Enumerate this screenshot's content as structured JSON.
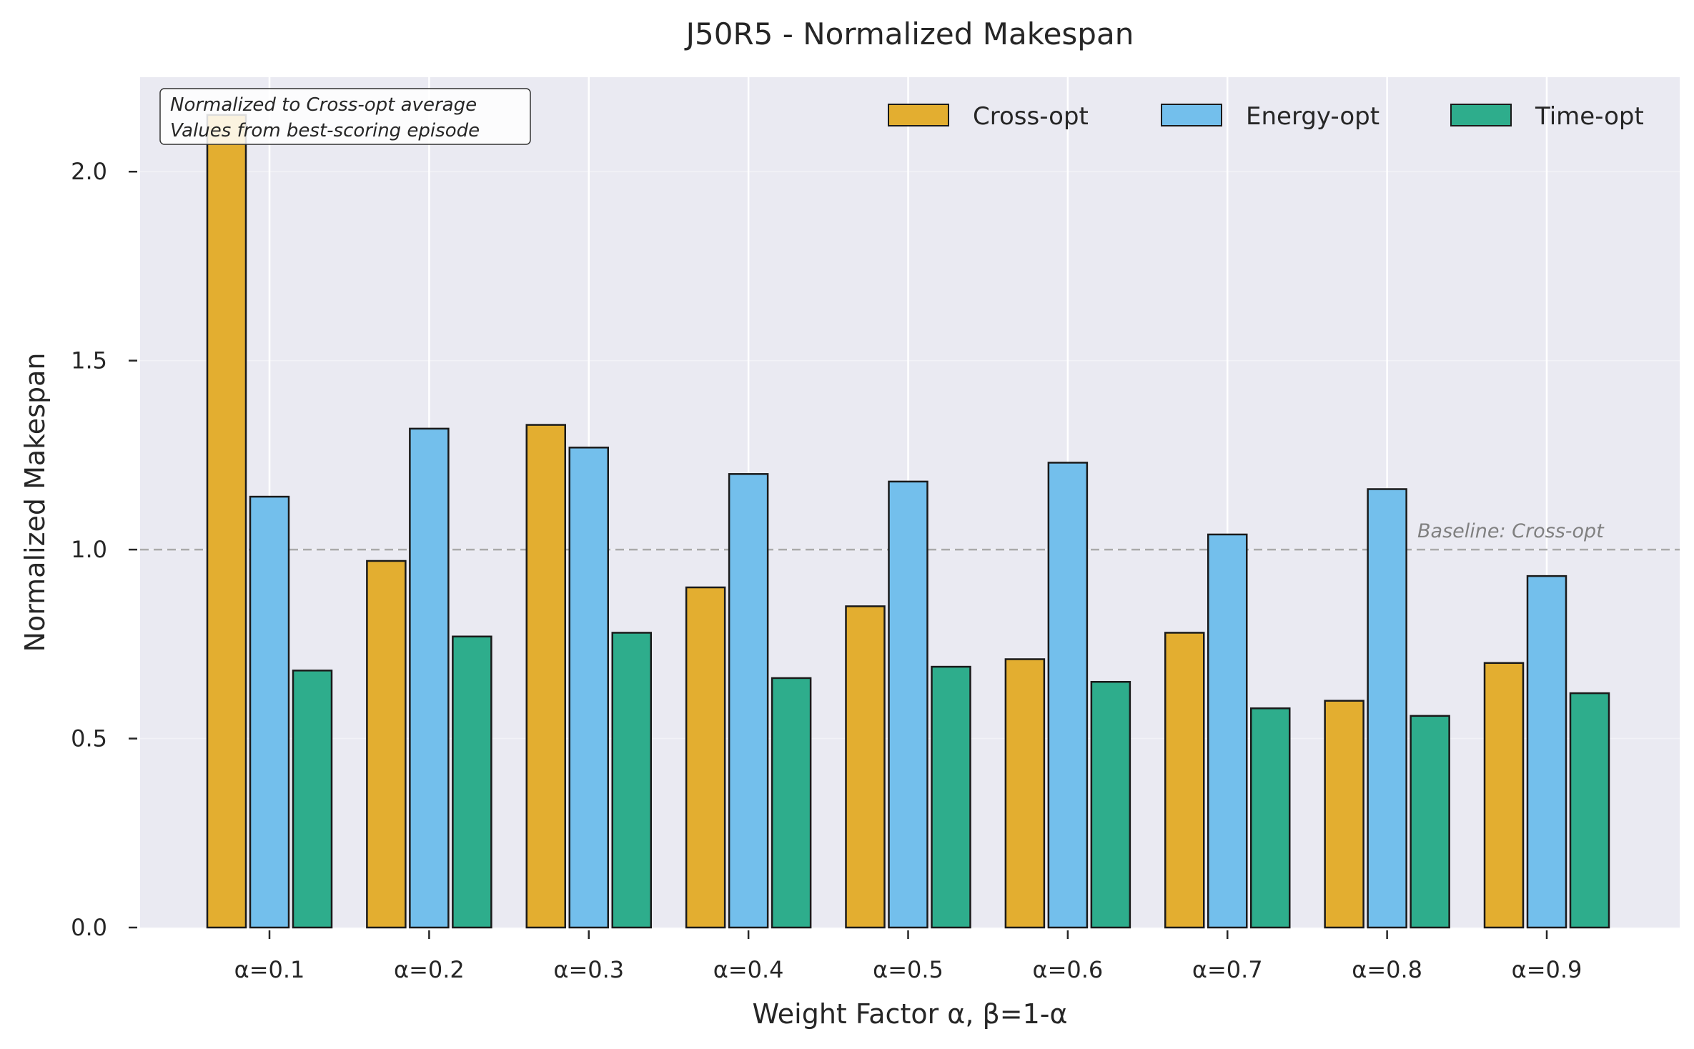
{
  "chart_data": {
    "type": "bar",
    "title": "J50R5 - Normalized Makespan",
    "xlabel": "Weight Factor α, β=1-α",
    "ylabel": "Normalized Makespan",
    "categories": [
      "α=0.1",
      "α=0.2",
      "α=0.3",
      "α=0.4",
      "α=0.5",
      "α=0.6",
      "α=0.7",
      "α=0.8",
      "α=0.9"
    ],
    "series": [
      {
        "name": "Cross-opt",
        "color": "#E3AE30",
        "values": [
          2.15,
          0.97,
          1.33,
          0.9,
          0.85,
          0.71,
          0.78,
          0.6,
          0.7
        ]
      },
      {
        "name": "Energy-opt",
        "color": "#73BFEC",
        "values": [
          1.14,
          1.32,
          1.27,
          1.2,
          1.18,
          1.23,
          1.04,
          1.16,
          0.93
        ]
      },
      {
        "name": "Time-opt",
        "color": "#2EAD8C",
        "values": [
          0.68,
          0.77,
          0.78,
          0.66,
          0.69,
          0.65,
          0.58,
          0.56,
          0.62
        ]
      }
    ],
    "ylim": [
      0,
      2.25
    ],
    "yticks": [
      "0.0",
      "0.5",
      "1.0",
      "1.5",
      "2.0"
    ],
    "ytick_values": [
      0,
      0.5,
      1.0,
      1.5,
      2.0
    ],
    "baseline": {
      "value": 1.0,
      "label": "Baseline: Cross-opt"
    },
    "annotation": [
      "Normalized to Cross-opt average",
      "Values from best-scoring episode"
    ],
    "legend_position": "top-right",
    "grid": true,
    "background": "#EAEAF2",
    "bar_edge_color": "#1a1a1a"
  }
}
